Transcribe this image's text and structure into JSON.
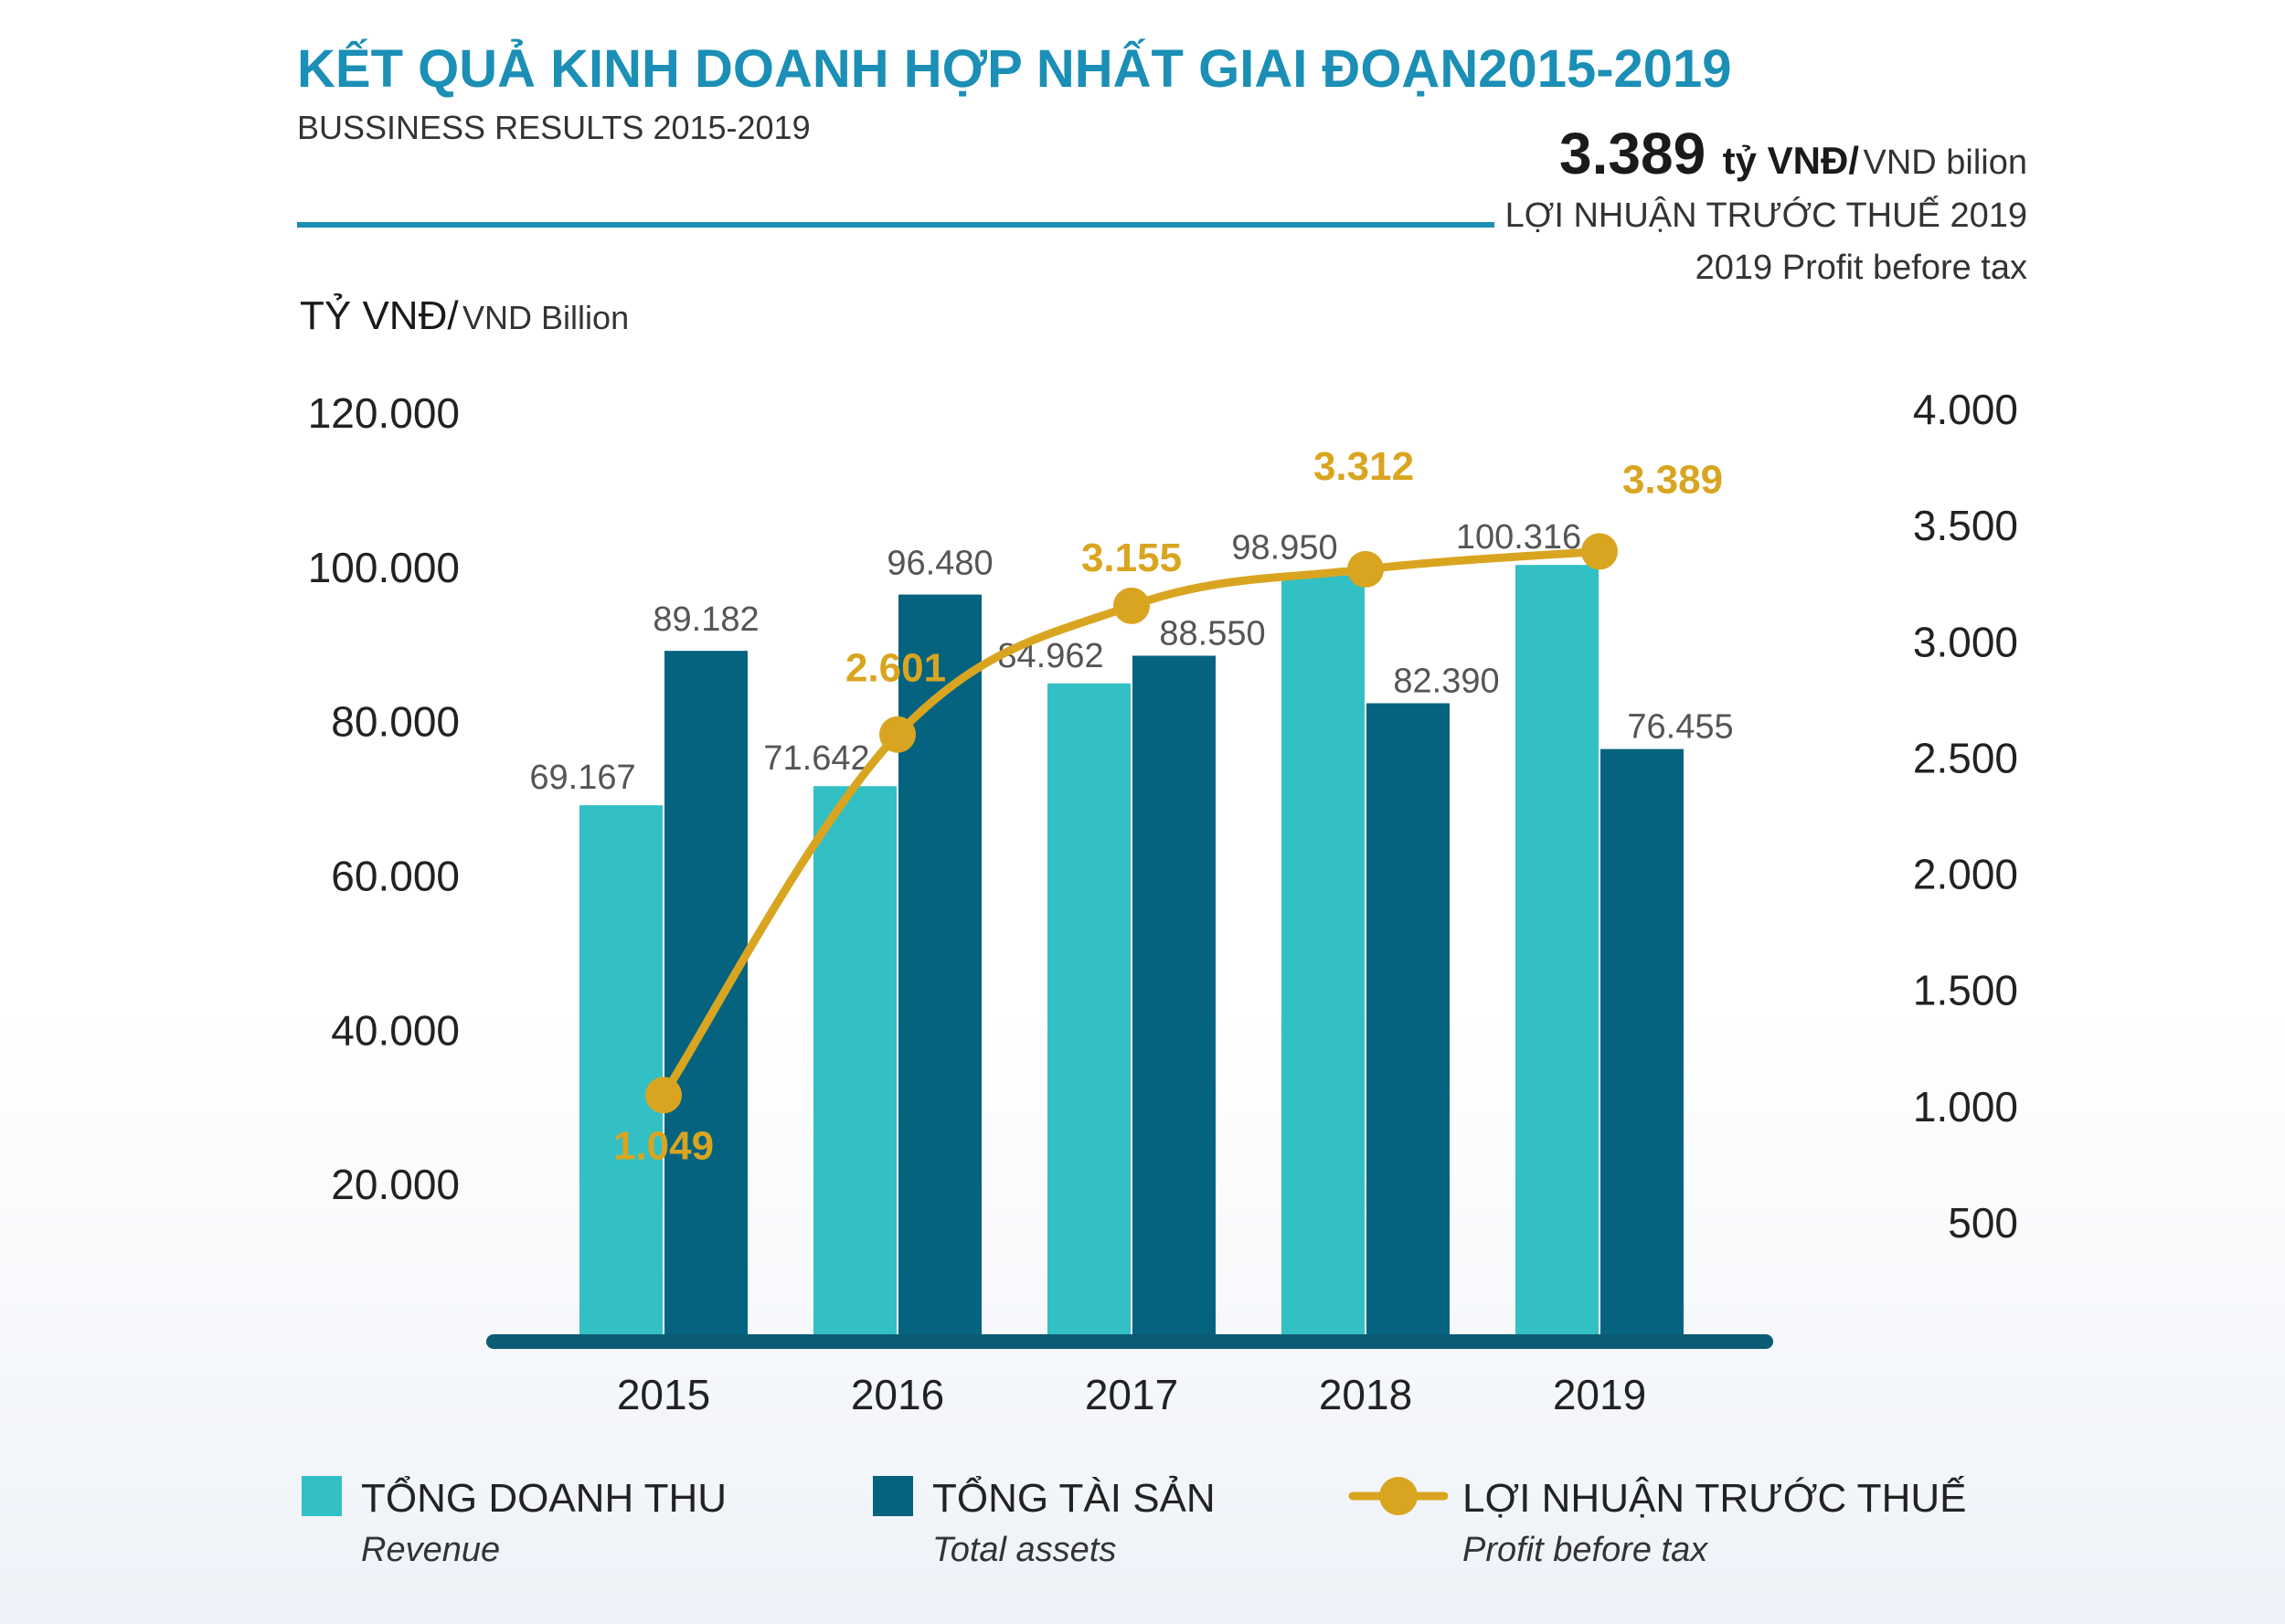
{
  "header": {
    "title": "KẾT QUẢ KINH DOANH HỢP NHẤT GIAI ĐOẠN2015-2019",
    "subtitle": "BUSSINESS RESULTS 2015-2019"
  },
  "highlight": {
    "value": "3.389",
    "unit_bold": "tỷ VNĐ/",
    "unit_light": "VND bilion",
    "label_vi": "LỢI NHUẬN TRƯỚC THUẾ 2019",
    "label_en": "2019 Profit before tax"
  },
  "axis_unit": {
    "bold": "TỶ VNĐ/",
    "light": "VND Billion"
  },
  "colors": {
    "title": "#1b8fb5",
    "revenue": "#33c0c4",
    "assets": "#05637f",
    "profit": "#d9a520",
    "baseline": "#0b5b74",
    "rule": "#1b8fb5"
  },
  "chart_data": {
    "type": "bar",
    "categories": [
      "2015",
      "2016",
      "2017",
      "2018",
      "2019"
    ],
    "series": [
      {
        "name": "TỔNG DOANH THU",
        "name_en": "Revenue",
        "kind": "bar",
        "axis": "left",
        "values": [
          69167,
          71642,
          84962,
          98950,
          100316
        ],
        "labels": [
          "69.167",
          "71.642",
          "84.962",
          "98.950",
          "100.316"
        ]
      },
      {
        "name": "TỔNG TÀI SẢN",
        "name_en": "Total assets",
        "kind": "bar",
        "axis": "left",
        "values": [
          89182,
          96480,
          88550,
          82390,
          76455
        ],
        "labels": [
          "89.182",
          "96.480",
          "88.550",
          "82.390",
          "76.455"
        ]
      },
      {
        "name": "LỢI NHUẬN TRƯỚC THUẾ",
        "name_en": "Profit before tax",
        "kind": "line",
        "axis": "right",
        "values": [
          1049,
          2601,
          3155,
          3312,
          3389
        ],
        "labels": [
          "1.049",
          "2.601",
          "3.155",
          "3.312",
          "3.389"
        ]
      }
    ],
    "left_axis": {
      "ylim": [
        0,
        120000
      ],
      "ticks": [
        20000,
        40000,
        60000,
        80000,
        100000,
        120000
      ],
      "tick_labels": [
        "20.000",
        "40.000",
        "60.000",
        "80.000",
        "100.000",
        "120.000"
      ]
    },
    "right_axis": {
      "ylim": [
        0,
        4000
      ],
      "ticks": [
        500,
        1000,
        1500,
        2000,
        2500,
        3000,
        3500,
        4000
      ],
      "tick_labels": [
        "500",
        "1.000",
        "1.500",
        "2.000",
        "2.500",
        "3.000",
        "3.500",
        "4.000"
      ]
    },
    "legend_position": "bottom"
  }
}
